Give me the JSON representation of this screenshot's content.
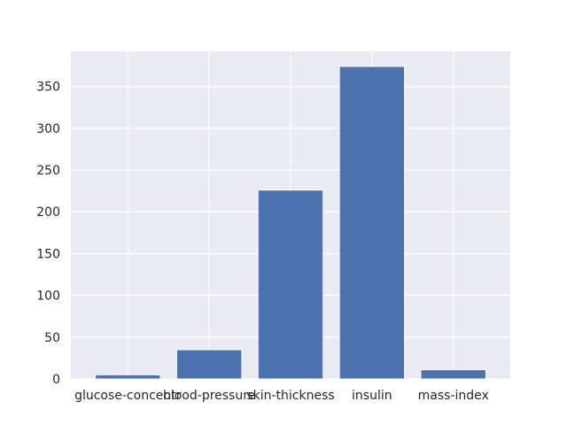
{
  "chart_data": {
    "type": "bar",
    "categories": [
      "glucose-concentr",
      "blood-pressure",
      "skin-thickness",
      "insulin",
      "mass-index"
    ],
    "values": [
      5,
      35,
      226,
      374,
      11
    ],
    "ylim": [
      0,
      392
    ],
    "yticks": [
      0,
      50,
      100,
      150,
      200,
      250,
      300,
      350
    ],
    "grid": true,
    "legend": "none",
    "colors": {
      "bar": "#4c72b0",
      "plot_background": "#eaeaf2",
      "grid": "#ffffff",
      "text": "#262626"
    }
  }
}
